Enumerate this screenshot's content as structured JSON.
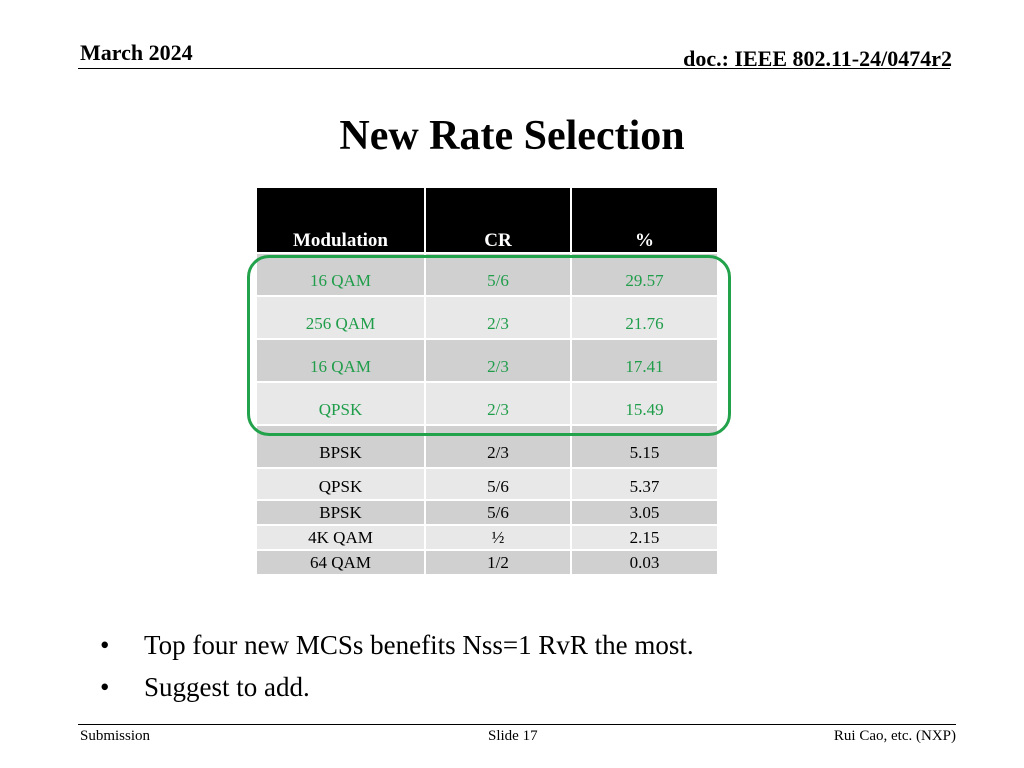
{
  "header": {
    "date": "March 2024",
    "doc": "doc.: IEEE 802.11-24/0474r2"
  },
  "title": "New Rate Selection",
  "table": {
    "headers": [
      "Modulation",
      "CR",
      "%"
    ],
    "rows": [
      [
        "16 QAM",
        "5/6",
        "29.57"
      ],
      [
        "256 QAM",
        "2/3",
        "21.76"
      ],
      [
        "16 QAM",
        "2/3",
        "17.41"
      ],
      [
        "QPSK",
        "2/3",
        "15.49"
      ],
      [
        "BPSK",
        "2/3",
        "5.15"
      ],
      [
        "QPSK",
        "5/6",
        "5.37"
      ],
      [
        "BPSK",
        "5/6",
        "3.05"
      ],
      [
        "4K QAM",
        "½",
        "2.15"
      ],
      [
        "64 QAM",
        "1/2",
        "0.03"
      ]
    ],
    "highlight_color": "#22a24b",
    "highlight_text_color": "#1f9d4a"
  },
  "bullets": [
    "Top four new MCSs benefits Nss=1 RvR the most.",
    "Suggest to add."
  ],
  "bullet_symbol": "•",
  "footer": {
    "left": "Submission",
    "center": "Slide 17",
    "right": "Rui Cao, etc. (NXP)"
  }
}
